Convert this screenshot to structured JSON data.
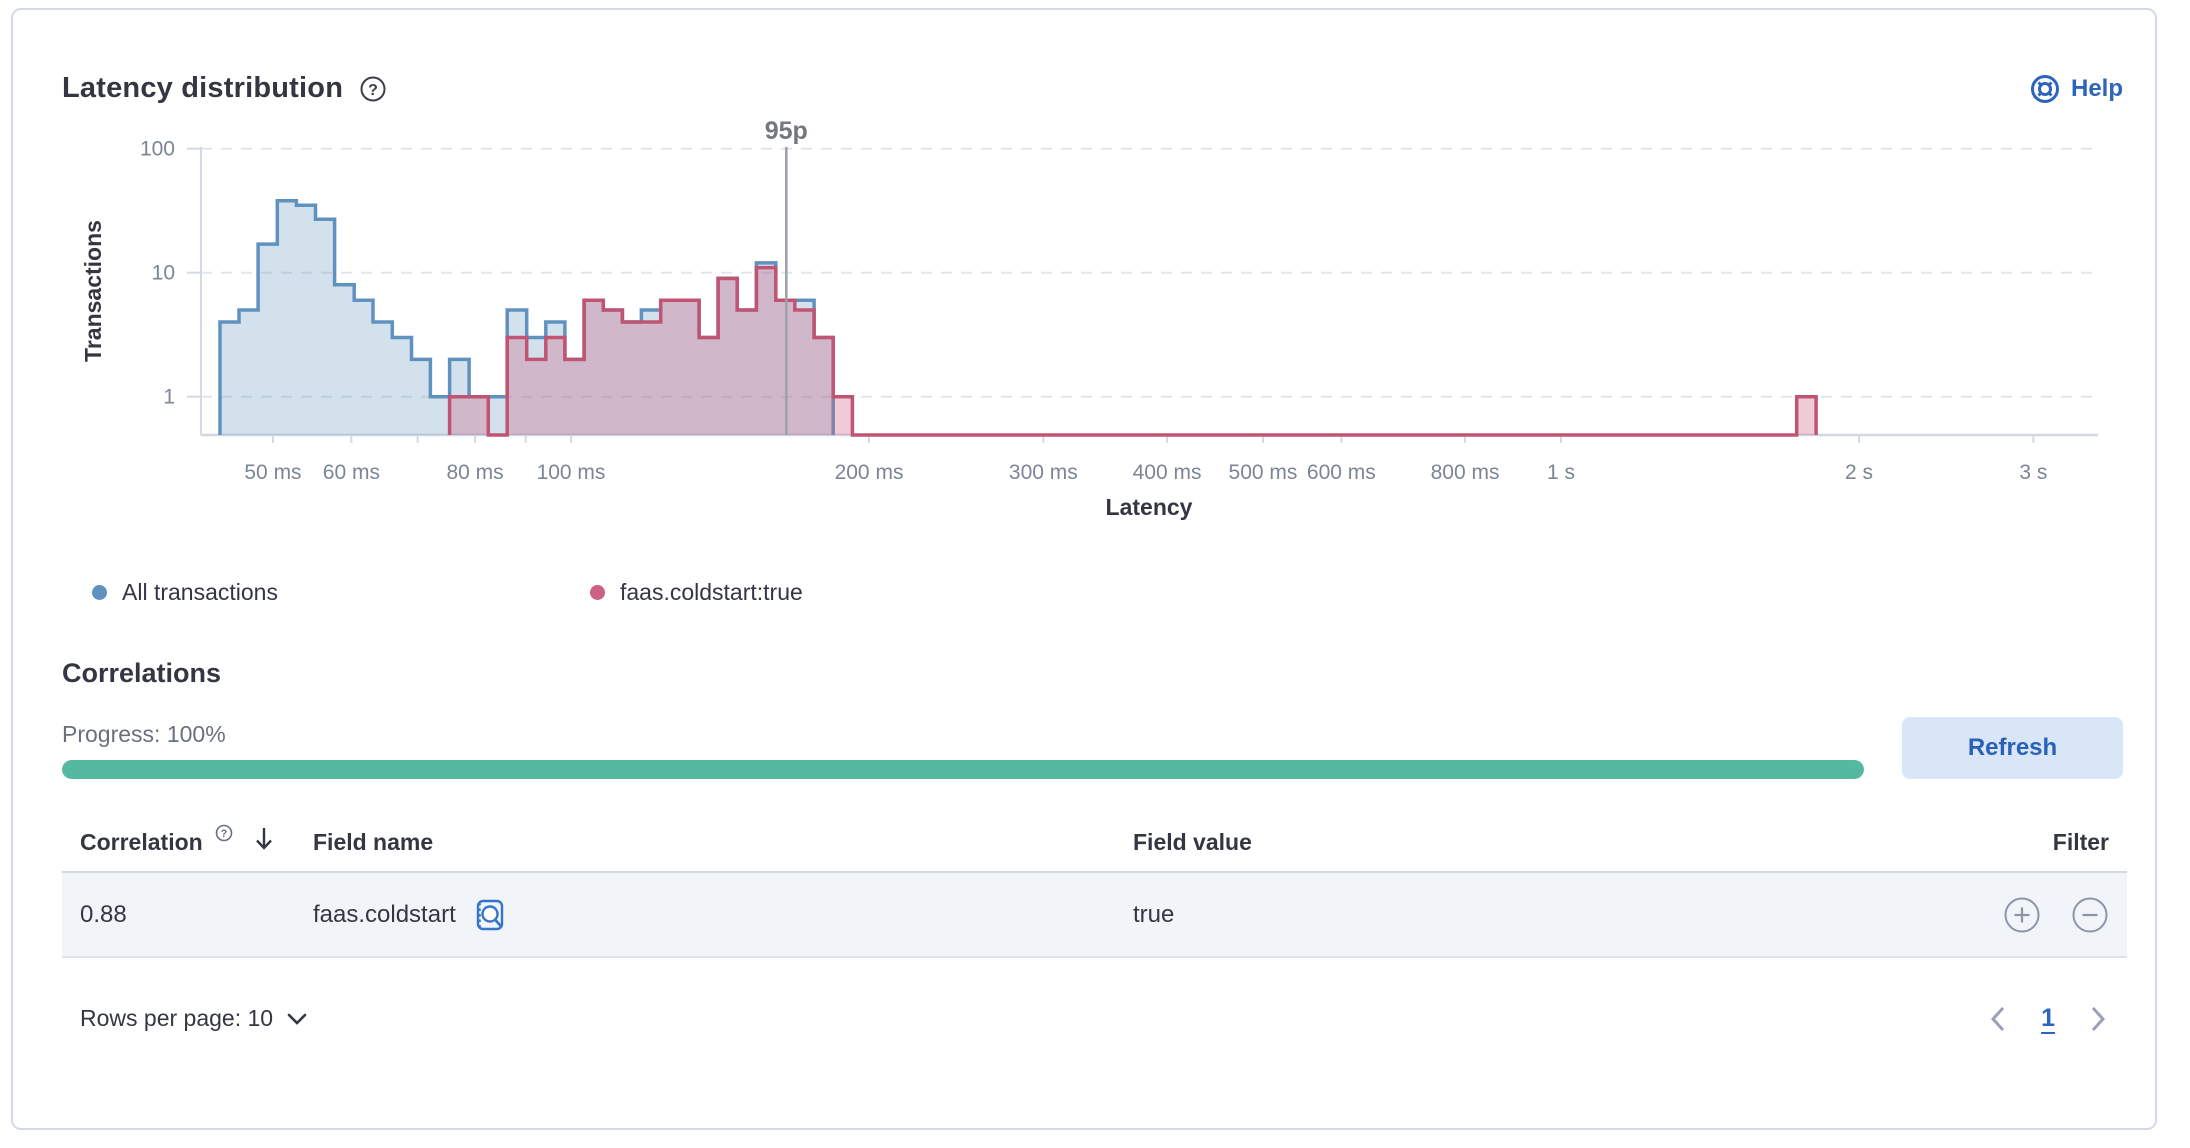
{
  "panel": {
    "title": "Latency distribution",
    "help_label": "Help"
  },
  "chart": {
    "y_axis_label": "Transactions",
    "x_axis_label": "Latency"
  },
  "chart_data": {
    "type": "area",
    "subtype": "step-histogram",
    "title": "Latency distribution",
    "xlabel": "Latency",
    "ylabel": "Transactions",
    "x_scale": "log",
    "y_scale": "log",
    "x_domain_ms": [
      43,
      3500
    ],
    "y_domain": [
      0.49,
      104
    ],
    "grid": "dashed-horizontal",
    "legend_position": "bottom",
    "x_ticks": [
      {
        "ms": 50,
        "label": "50 ms"
      },
      {
        "ms": 60,
        "label": "60 ms"
      },
      {
        "ms": 70,
        "label": ""
      },
      {
        "ms": 80,
        "label": "80 ms"
      },
      {
        "ms": 90,
        "label": ""
      },
      {
        "ms": 100,
        "label": "100 ms"
      },
      {
        "ms": 200,
        "label": "200 ms"
      },
      {
        "ms": 300,
        "label": "300 ms"
      },
      {
        "ms": 400,
        "label": "400 ms"
      },
      {
        "ms": 500,
        "label": "500 ms"
      },
      {
        "ms": 600,
        "label": "600 ms"
      },
      {
        "ms": 800,
        "label": "800 ms"
      },
      {
        "ms": 1000,
        "label": "1 s"
      },
      {
        "ms": 2000,
        "label": "2 s"
      },
      {
        "ms": 3000,
        "label": "3 s"
      }
    ],
    "y_ticks": [
      {
        "v": 1,
        "label": "1"
      },
      {
        "v": 10,
        "label": "10"
      },
      {
        "v": 100,
        "label": "100"
      }
    ],
    "annotation": {
      "label": "95p",
      "ms": 165
    },
    "series": [
      {
        "name": "All transactions",
        "color": "#6092C0",
        "fill_opacity": 0.28,
        "breakpoints_ms_count": [
          [
            44.2,
            4
          ],
          [
            46.2,
            5
          ],
          [
            48.3,
            17
          ],
          [
            50.5,
            38
          ],
          [
            52.8,
            35
          ],
          [
            55.2,
            27
          ],
          [
            57.7,
            8
          ],
          [
            60.4,
            6
          ],
          [
            63.1,
            4
          ],
          [
            66.0,
            3
          ],
          [
            69.0,
            2
          ],
          [
            72.1,
            1
          ],
          [
            75.4,
            2
          ],
          [
            78.9,
            1
          ],
          [
            82.5,
            1
          ],
          [
            86.2,
            5
          ],
          [
            90.2,
            3
          ],
          [
            94.3,
            4
          ],
          [
            98.6,
            2
          ],
          [
            103.1,
            6
          ],
          [
            107.8,
            5
          ],
          [
            112.7,
            4
          ],
          [
            117.8,
            5
          ],
          [
            123.2,
            6
          ],
          [
            128.8,
            6
          ],
          [
            134.7,
            3
          ],
          [
            140.8,
            9
          ],
          [
            147.2,
            5
          ],
          [
            153.9,
            12
          ],
          [
            161.0,
            6
          ],
          [
            168.3,
            6
          ],
          [
            176.0,
            3
          ],
          [
            184.0,
            0
          ]
        ]
      },
      {
        "name": "faas.coldstart:true",
        "color": "#CC6180",
        "stroke": "#C05573",
        "fill_opacity": 0.33,
        "breakpoints_ms_count": [
          [
            75.4,
            1
          ],
          [
            78.9,
            1
          ],
          [
            82.5,
            0
          ],
          [
            86.2,
            3
          ],
          [
            90.2,
            2
          ],
          [
            94.3,
            3
          ],
          [
            98.6,
            2
          ],
          [
            103.1,
            6
          ],
          [
            107.8,
            5
          ],
          [
            112.7,
            4
          ],
          [
            117.8,
            4
          ],
          [
            123.2,
            6
          ],
          [
            128.8,
            6
          ],
          [
            134.7,
            3
          ],
          [
            140.8,
            9
          ],
          [
            147.2,
            5
          ],
          [
            153.9,
            11
          ],
          [
            161.0,
            6
          ],
          [
            168.3,
            5
          ],
          [
            176.0,
            3
          ],
          [
            184.0,
            1
          ],
          [
            192.4,
            0
          ],
          [
            1730,
            1
          ],
          [
            1810,
            0
          ]
        ]
      }
    ]
  },
  "legend": [
    {
      "label": "All transactions",
      "dot_style": "background:#6092C0"
    },
    {
      "label": "faas.coldstart:true",
      "dot_style": "background:#CC6180"
    }
  ],
  "correlations": {
    "heading": "Correlations",
    "progress_label": "Progress: 100%",
    "progress_percent": 100,
    "progress_color": "#54B9A0",
    "refresh_label": "Refresh",
    "table": {
      "headers": {
        "correlation": "Correlation",
        "field_name": "Field name",
        "field_value": "Field value",
        "filter": "Filter"
      },
      "rows": [
        {
          "correlation": "0.88",
          "field_name": "faas.coldstart",
          "field_value": "true"
        }
      ]
    },
    "footer": {
      "rows_per_page": "Rows per page: 10",
      "page": "1"
    }
  }
}
